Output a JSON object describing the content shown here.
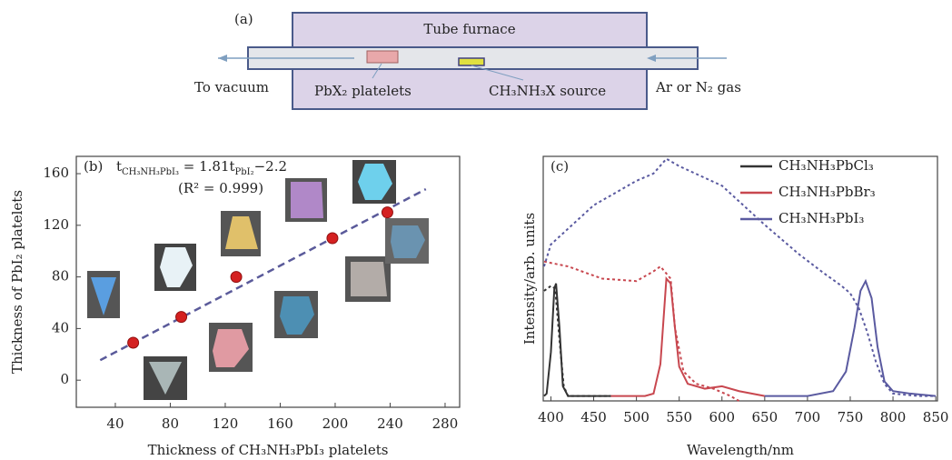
{
  "diagram": {
    "label": "(a)",
    "furnace": "Tube furnace",
    "left": "To vacuum",
    "platelets": "PbX₂ platelets",
    "source": "CH₃NH₃X source",
    "right": "Ar or N₂ gas"
  },
  "chart_data": [
    {
      "type": "scatter",
      "panel_label": "(b)",
      "equation": [
        {
          "t": "t"
        },
        {
          "sub": "CH₃NH₃PbI₃"
        },
        {
          "t": " = 1.81t"
        },
        {
          "sub": "PbI₂"
        },
        {
          "t": "−2.2"
        }
      ],
      "annotation": "(R² = 0.999)",
      "x_label": "Thickness of CH₃NH₃PbI₃ platelets",
      "y_label": "Thickness of PbI₂ platelets",
      "xlim": [
        11.6,
        290.6
      ],
      "ylim": [
        -21,
        173.4
      ],
      "xticks": [
        40,
        80,
        120,
        160,
        200,
        240,
        280
      ],
      "yticks": [
        0,
        40,
        80,
        120,
        160
      ],
      "x": [
        53,
        88,
        128,
        198,
        238
      ],
      "values": [
        29,
        49,
        80,
        110,
        130
      ],
      "color": "#d42020",
      "fit": {
        "x": [
          29,
          266
        ],
        "values": [
          15.5,
          148
        ],
        "color": "#5a5a9a"
      }
    },
    {
      "type": "line",
      "panel_label": "(c)",
      "x_label": "Wavelength/nm",
      "y_label": "Intensity/arb. units",
      "xlim": [
        391,
        852
      ],
      "ylim": [
        0,
        1
      ],
      "xticks": [
        400,
        450,
        500,
        550,
        600,
        650,
        700,
        750,
        800,
        850
      ],
      "series": [
        {
          "name": "CH₃NH₃PbCl₃",
          "color": "#333333",
          "style": "solid",
          "x": [
            392,
            395,
            400,
            404,
            406,
            410,
            414,
            420,
            450,
            470
          ],
          "values": [
            0.02,
            0.03,
            0.2,
            0.46,
            0.48,
            0.3,
            0.06,
            0.02,
            0.02,
            0.02
          ]
        },
        {
          "name": "CH₃NH₃PbBr₃",
          "color": "#c8474f",
          "style": "solid",
          "x": [
            470,
            510,
            520,
            528,
            535,
            540,
            545,
            550,
            560,
            580,
            600,
            620,
            650
          ],
          "values": [
            0.02,
            0.02,
            0.03,
            0.15,
            0.5,
            0.48,
            0.3,
            0.14,
            0.07,
            0.05,
            0.06,
            0.04,
            0.02
          ]
        },
        {
          "name": "CH₃NH₃PbI₃",
          "color": "#5a5aa0",
          "style": "solid",
          "x": [
            650,
            700,
            730,
            745,
            755,
            762,
            768,
            775,
            782,
            790,
            800,
            820,
            850
          ],
          "values": [
            0.02,
            0.02,
            0.04,
            0.12,
            0.3,
            0.45,
            0.49,
            0.42,
            0.22,
            0.08,
            0.04,
            0.03,
            0.02
          ]
        },
        {
          "color": "#333333",
          "style": "dotted",
          "x": [
            392,
            400,
            405,
            410,
            415,
            420,
            450,
            470
          ],
          "values": [
            0.45,
            0.47,
            0.46,
            0.25,
            0.06,
            0.02,
            0.02,
            0.02
          ]
        },
        {
          "color": "#c8474f",
          "style": "dotted",
          "x": [
            392,
            420,
            460,
            500,
            520,
            528,
            540,
            545,
            555,
            570,
            590,
            610,
            620
          ],
          "values": [
            0.57,
            0.55,
            0.5,
            0.49,
            0.53,
            0.55,
            0.5,
            0.3,
            0.12,
            0.07,
            0.05,
            0.02,
            0.0
          ]
        },
        {
          "color": "#5a5aa0",
          "style": "dotted",
          "x": [
            392,
            400,
            450,
            500,
            520,
            535,
            550,
            600,
            650,
            690,
            720,
            740,
            750,
            760,
            770,
            780,
            790,
            800,
            830,
            850
          ],
          "values": [
            0.55,
            0.64,
            0.8,
            0.9,
            0.93,
            0.99,
            0.96,
            0.88,
            0.72,
            0.6,
            0.52,
            0.47,
            0.44,
            0.38,
            0.28,
            0.16,
            0.07,
            0.03,
            0.02,
            0.02
          ]
        }
      ]
    }
  ]
}
